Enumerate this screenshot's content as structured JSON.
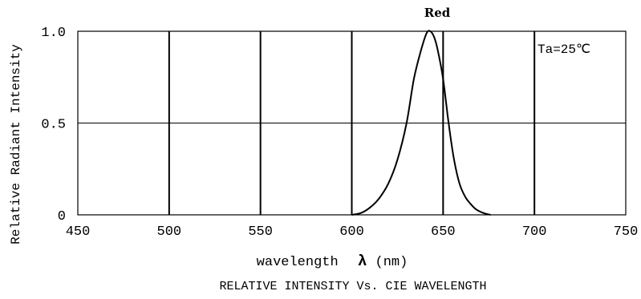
{
  "chart_data": {
    "type": "line",
    "title": "Red",
    "subtitle": "RELATIVE INTENSITY Vs. CIE WAVELENGTH",
    "annotation": "Ta=25℃",
    "xlabel": "wavelength",
    "xlabel_symbol": "λ",
    "xlabel_unit": "(nm)",
    "ylabel": "Relative Radiant Intensity",
    "xlim": [
      450,
      750
    ],
    "ylim": [
      0,
      1.0
    ],
    "x_ticks": [
      450,
      500,
      550,
      600,
      650,
      700,
      750
    ],
    "x_tick_labels": [
      "450",
      "500",
      "550",
      "600",
      "650",
      "700",
      "750"
    ],
    "y_ticks": [
      0,
      0.5,
      1.0
    ],
    "y_tick_labels": [
      "0",
      "0.5",
      "1.0"
    ],
    "grid": true,
    "line_color": "#000000",
    "series": [
      {
        "x": [
          600,
          605,
          610,
          615,
          620,
          625,
          630,
          634,
          638,
          641,
          643,
          645,
          647,
          650,
          653,
          656,
          659,
          662,
          665,
          668,
          672,
          676
        ],
        "y": [
          0.0,
          0.01,
          0.04,
          0.09,
          0.17,
          0.3,
          0.5,
          0.74,
          0.9,
          0.99,
          1.0,
          0.97,
          0.9,
          0.74,
          0.5,
          0.3,
          0.17,
          0.1,
          0.06,
          0.03,
          0.01,
          0.0
        ]
      }
    ]
  }
}
